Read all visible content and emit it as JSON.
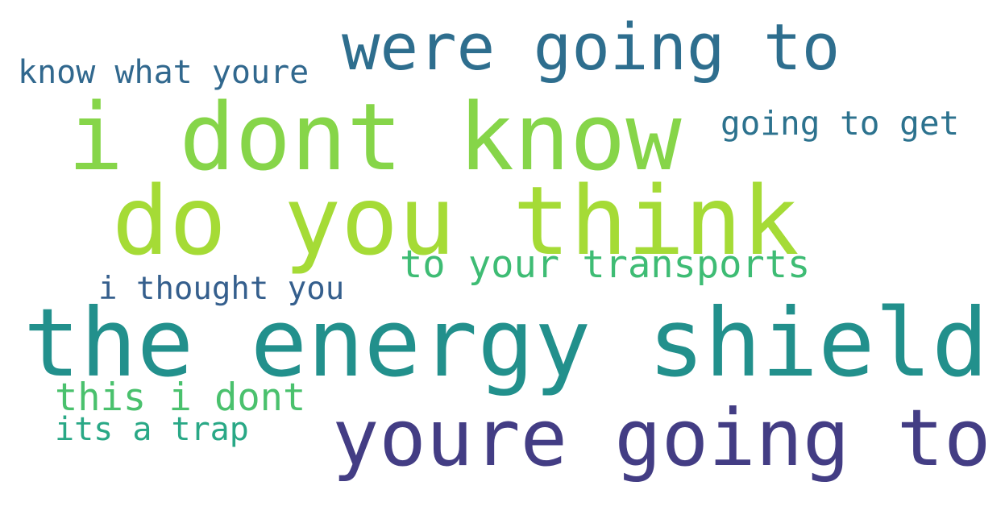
{
  "words": [
    {
      "text": "were going to",
      "color": "#2e6e8e"
    },
    {
      "text": "know what youre",
      "color": "#31688e"
    },
    {
      "text": "i dont know",
      "color": "#86d549"
    },
    {
      "text": "going to get",
      "color": "#2c728e"
    },
    {
      "text": "do you think",
      "color": "#a5db36"
    },
    {
      "text": "to your transports",
      "color": "#3ebc74"
    },
    {
      "text": "i thought you",
      "color": "#355f8d"
    },
    {
      "text": "the energy shield",
      "color": "#22908c"
    },
    {
      "text": "this i dont",
      "color": "#4ac16d"
    },
    {
      "text": "its a trap",
      "color": "#29a886"
    },
    {
      "text": "youre going to",
      "color": "#433d84"
    }
  ]
}
